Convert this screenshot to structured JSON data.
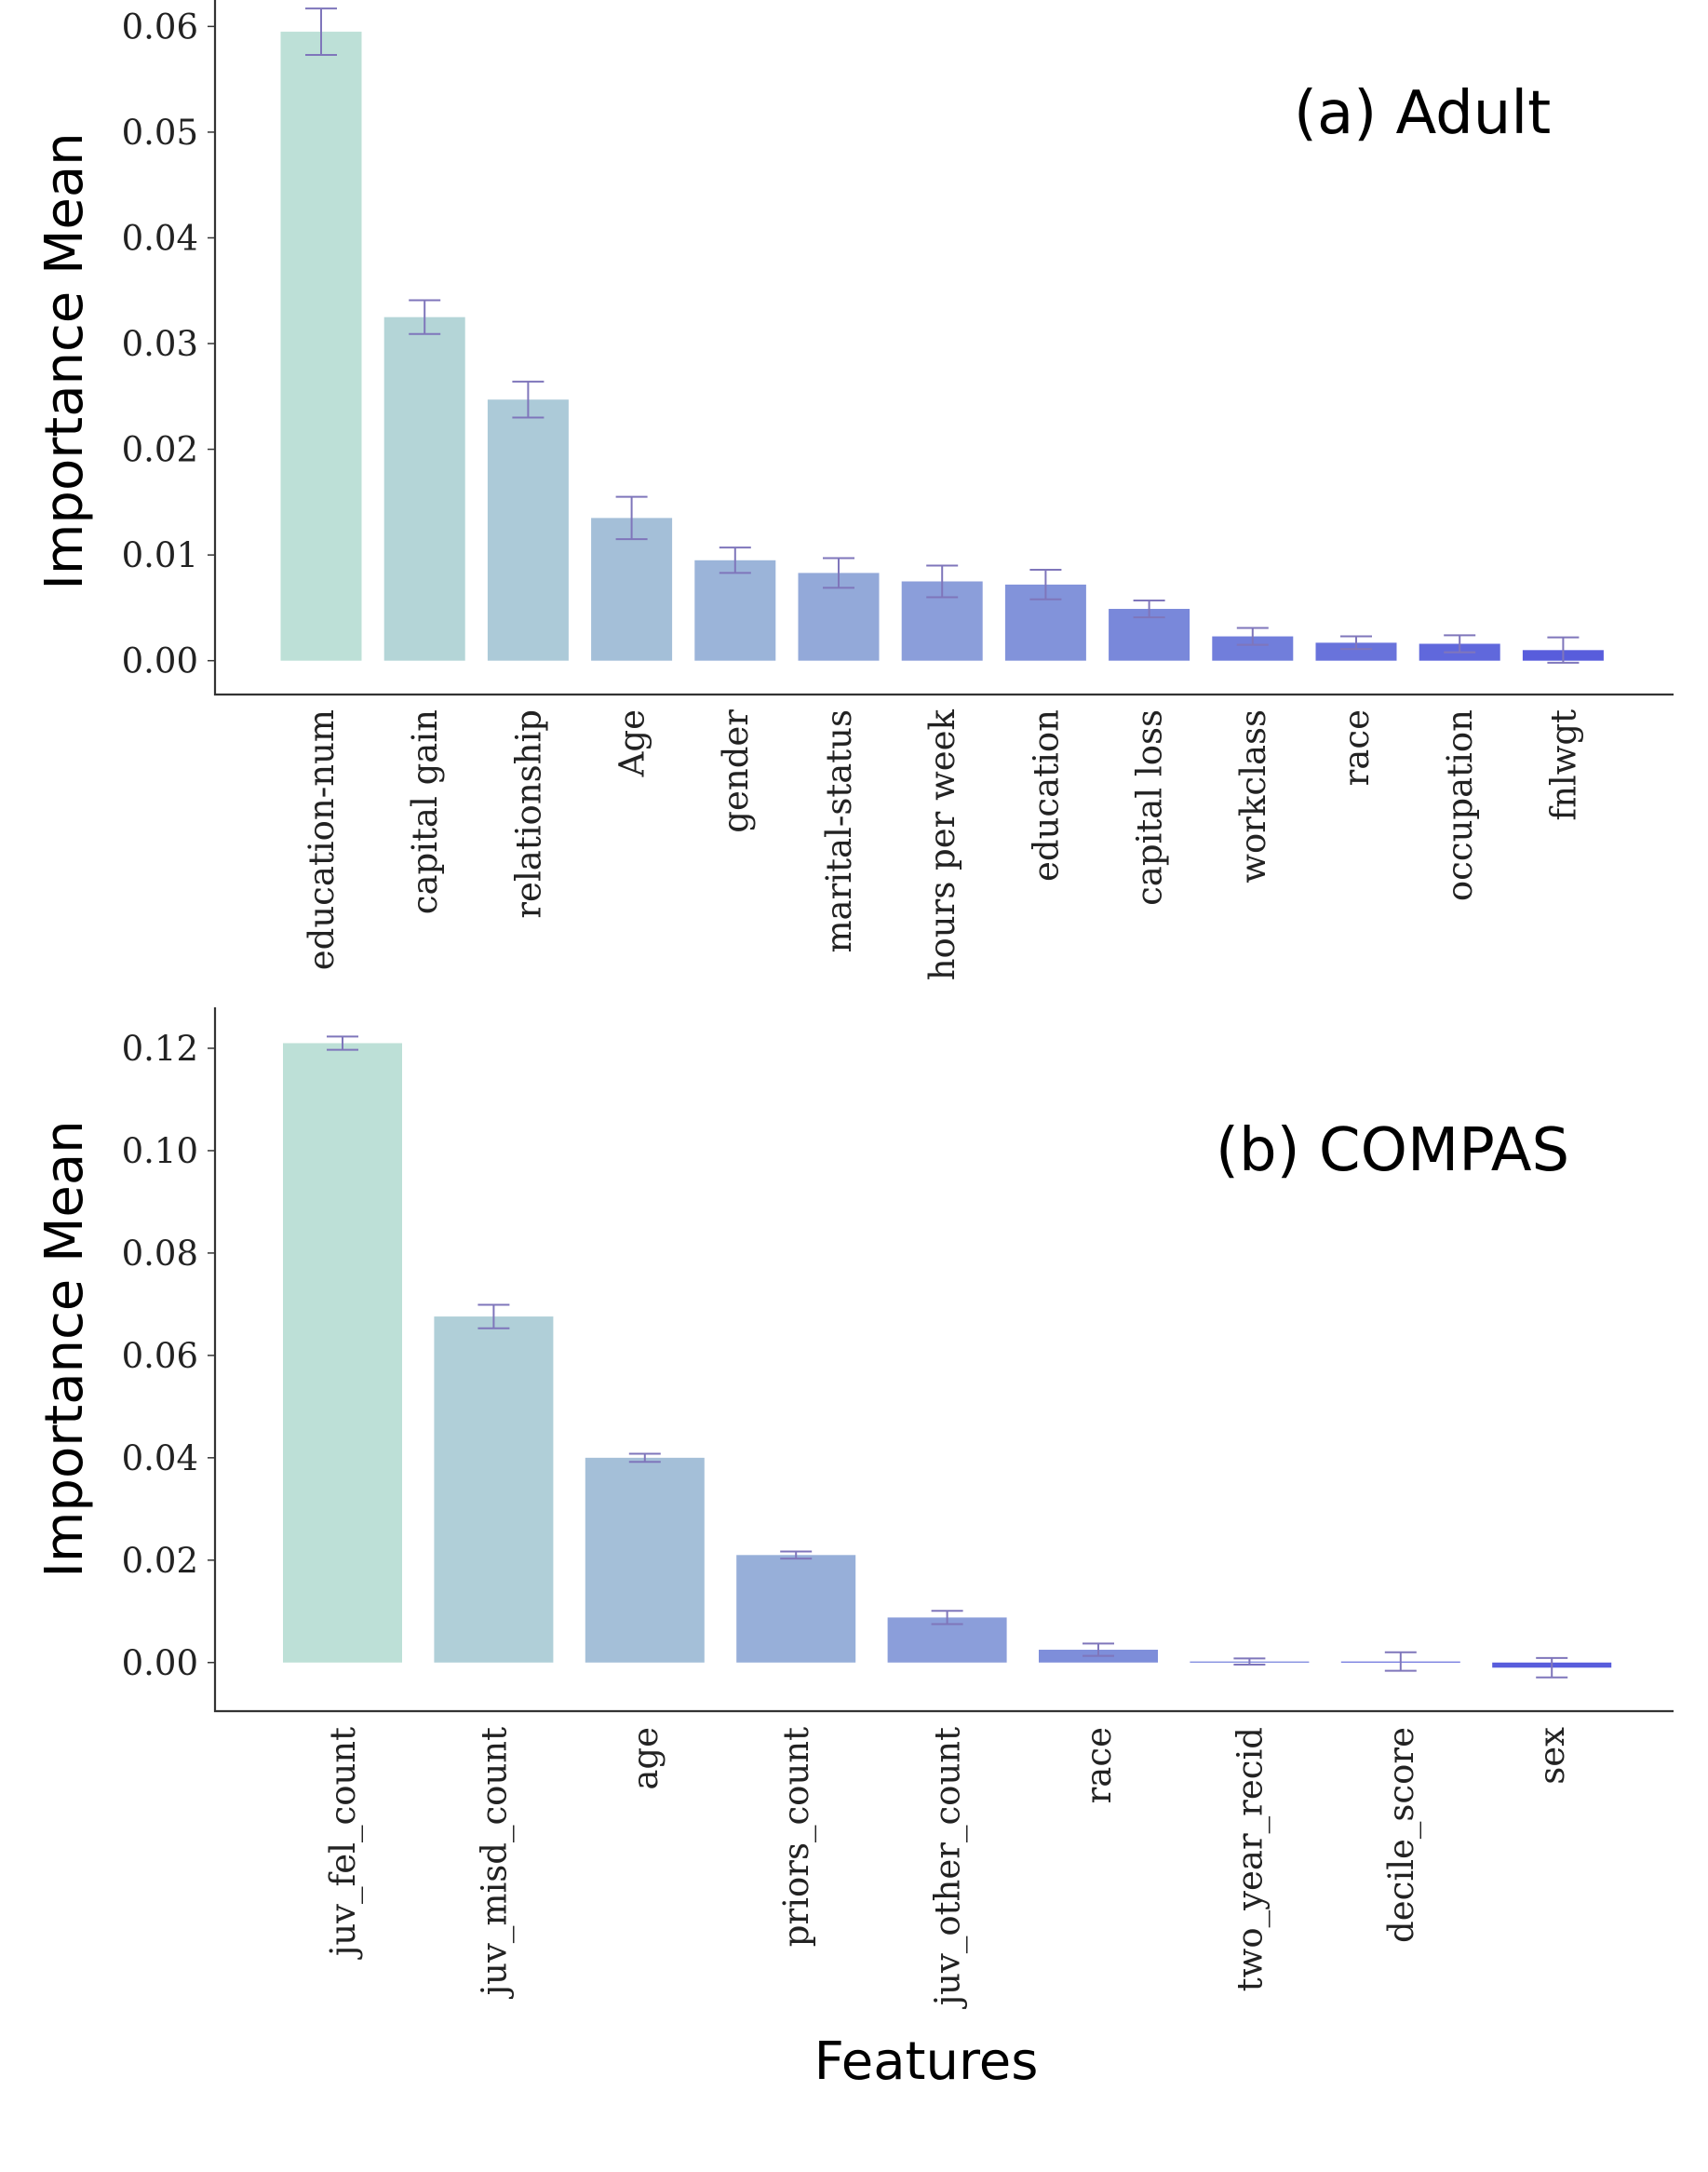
{
  "colors": {
    "bar_start": "#b7ddd4",
    "bar_end": "#4a4fd9",
    "error_bar": "#7f76bb",
    "axis": "#333333"
  },
  "chart_data": [
    {
      "type": "bar",
      "title": "(a) Adult",
      "xlabel": "",
      "ylabel": "Importance Mean",
      "ylim": [
        -0.0032,
        0.0625
      ],
      "yticks": [
        0.0,
        0.01,
        0.02,
        0.03,
        0.04,
        0.05,
        0.06
      ],
      "ytick_labels": [
        "0.00",
        "0.01",
        "0.02",
        "0.03",
        "0.04",
        "0.05",
        "0.06"
      ],
      "categories": [
        "education-num",
        "capital gain",
        "relationship",
        "Age",
        "gender",
        "marital-status",
        "hours per week",
        "education",
        "capital loss",
        "workclass",
        "race",
        "occupation",
        "fnlwgt"
      ],
      "values": [
        0.0595,
        0.0325,
        0.0247,
        0.0135,
        0.0095,
        0.0083,
        0.0075,
        0.0072,
        0.0049,
        0.0023,
        0.0017,
        0.0016,
        0.001
      ],
      "errors": [
        0.0022,
        0.0016,
        0.0017,
        0.002,
        0.0012,
        0.0014,
        0.0015,
        0.0014,
        0.0008,
        0.0008,
        0.0006,
        0.0008,
        0.0012
      ],
      "grid": false
    },
    {
      "type": "bar",
      "title": "(b) COMPAS",
      "xlabel": "Features",
      "ylabel": "Importance Mean",
      "ylim": [
        -0.0095,
        0.128
      ],
      "yticks": [
        0.0,
        0.02,
        0.04,
        0.06,
        0.08,
        0.1,
        0.12
      ],
      "ytick_labels": [
        "0.00",
        "0.02",
        "0.04",
        "0.06",
        "0.08",
        "0.10",
        "0.12"
      ],
      "categories": [
        "juv_fel_count",
        "juv_misd_count",
        "age",
        "priors_count",
        "juv_other_count",
        "race",
        "two_year_recid",
        "decile_score",
        "sex"
      ],
      "values": [
        0.121,
        0.0676,
        0.04,
        0.021,
        0.0088,
        0.0025,
        0.0002,
        0.0002,
        -0.001
      ],
      "errors": [
        0.0013,
        0.0023,
        0.0008,
        0.0007,
        0.0013,
        0.0012,
        0.0006,
        0.0018,
        0.0019
      ],
      "grid": false
    }
  ]
}
